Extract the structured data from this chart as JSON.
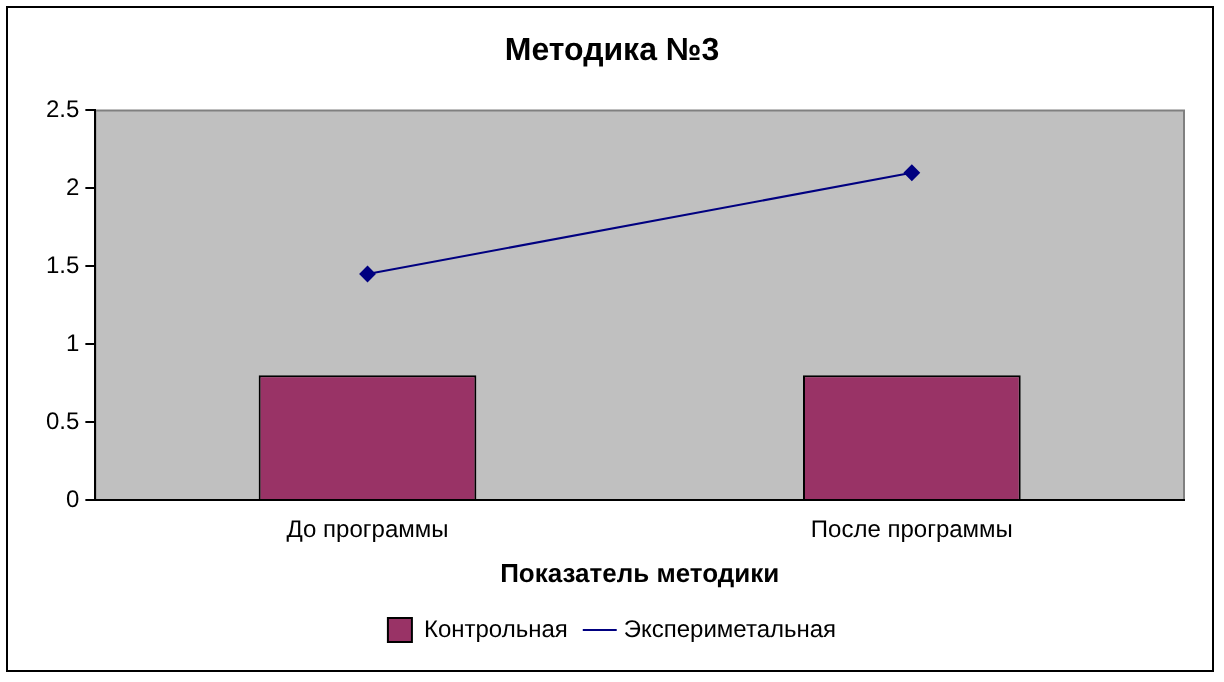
{
  "chart_data": {
    "type": "bar",
    "title": "Методика №3",
    "xlabel": "Показатель методики",
    "categories": [
      "До программы",
      "После программы"
    ],
    "series": [
      {
        "name": "Контрольная",
        "color": "#993366",
        "values": [
          0.8,
          0.8
        ]
      },
      {
        "name": "Экспериметальная",
        "type": "line",
        "color": "#000080",
        "values": [
          1.45,
          2.1
        ]
      }
    ],
    "ylim": [
      0,
      2.5
    ],
    "yticks": [
      0,
      0.5,
      1,
      1.5,
      2,
      2.5
    ],
    "grid": false,
    "legend": "bottom",
    "marker": "diamond",
    "line_style": "solid"
  }
}
